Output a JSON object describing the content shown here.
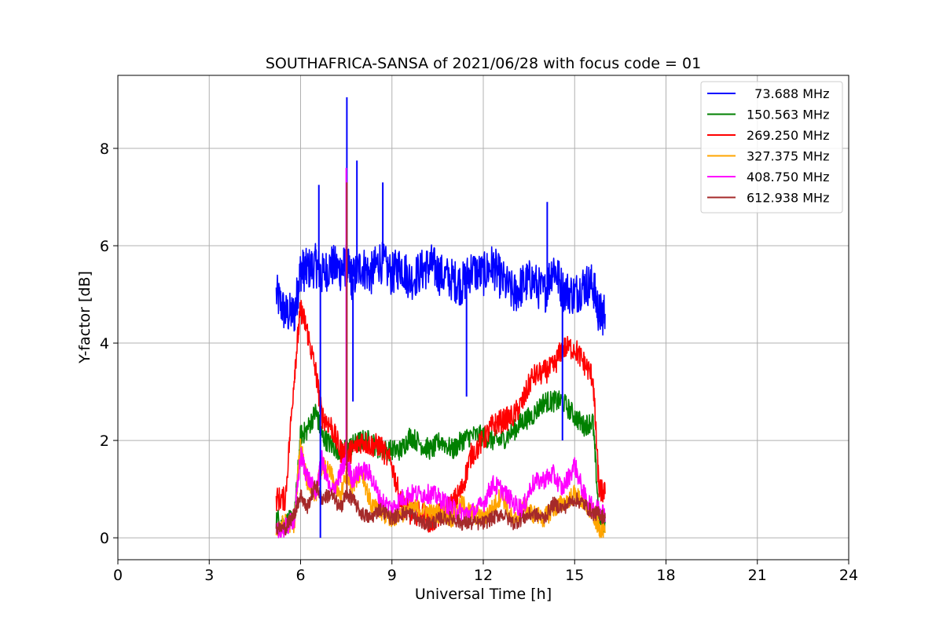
{
  "chart_data": {
    "type": "line",
    "title": "SOUTHAFRICA-SANSA of 2021/06/28 with focus code = 01",
    "xlabel": "Universal Time [h]",
    "ylabel": "Y-factor [dB]",
    "xlim": [
      0,
      24
    ],
    "ylim": [
      -0.45,
      9.5
    ],
    "xticks": [
      0,
      3,
      6,
      9,
      12,
      15,
      18,
      21,
      24
    ],
    "yticks": [
      0,
      2,
      4,
      6,
      8
    ],
    "grid": true,
    "legend_position": "top-right",
    "x": [
      5.2,
      5.5,
      5.8,
      6.0,
      6.2,
      6.5,
      6.7,
      7.0,
      7.3,
      7.5,
      7.7,
      8.0,
      8.3,
      8.6,
      9.0,
      9.3,
      9.6,
      10.0,
      10.3,
      10.6,
      11.0,
      11.3,
      11.6,
      12.0,
      12.3,
      12.6,
      13.0,
      13.3,
      13.6,
      14.0,
      14.3,
      14.6,
      15.0,
      15.3,
      15.6,
      15.8,
      16.0
    ],
    "series": [
      {
        "name": "  73.688 MHz",
        "color": "#0000ff",
        "values": [
          5.0,
          4.6,
          4.6,
          5.5,
          5.5,
          5.6,
          5.4,
          5.6,
          5.5,
          5.6,
          5.3,
          5.6,
          5.4,
          5.7,
          5.4,
          5.6,
          5.3,
          5.5,
          5.6,
          5.4,
          5.3,
          5.2,
          5.5,
          5.4,
          5.6,
          5.3,
          5.0,
          5.2,
          5.3,
          5.0,
          5.6,
          5.1,
          5.0,
          5.2,
          5.2,
          4.6,
          4.6
        ]
      },
      {
        "name": "150.563 MHz",
        "color": "#008000",
        "values": [
          0.4,
          0.3,
          0.4,
          2.1,
          2.2,
          2.6,
          2.1,
          1.9,
          1.8,
          1.8,
          1.9,
          2.0,
          2.0,
          1.8,
          1.8,
          1.8,
          2.1,
          1.9,
          1.8,
          2.0,
          1.8,
          2.0,
          2.1,
          2.1,
          2.0,
          2.0,
          2.2,
          2.4,
          2.5,
          2.8,
          2.8,
          2.8,
          2.5,
          2.3,
          2.4,
          0.4,
          0.3
        ]
      },
      {
        "name": "269.250 MHz",
        "color": "#ff0000",
        "values": [
          0.8,
          0.8,
          3.4,
          4.7,
          4.3,
          3.4,
          2.5,
          2.3,
          1.8,
          1.7,
          1.8,
          2.0,
          1.9,
          1.9,
          1.5,
          0.7,
          0.5,
          0.5,
          0.3,
          0.5,
          0.7,
          1.0,
          1.7,
          2.0,
          2.3,
          2.4,
          2.5,
          2.8,
          3.3,
          3.4,
          3.5,
          3.9,
          3.9,
          3.6,
          3.3,
          1.0,
          0.9
        ]
      },
      {
        "name": "327.375 MHz",
        "color": "#ffa500",
        "values": [
          0.2,
          0.3,
          0.3,
          2.0,
          1.2,
          0.9,
          1.5,
          1.3,
          0.8,
          1.3,
          1.1,
          1.4,
          0.7,
          0.5,
          0.4,
          0.5,
          0.6,
          0.6,
          0.5,
          0.5,
          0.4,
          0.7,
          0.5,
          0.4,
          0.6,
          0.9,
          0.3,
          0.7,
          0.5,
          0.4,
          0.6,
          0.7,
          0.9,
          0.7,
          0.5,
          0.2,
          0.1
        ]
      },
      {
        "name": "408.750 MHz",
        "color": "#ff00ff",
        "values": [
          0.1,
          0.2,
          0.4,
          1.7,
          1.3,
          0.9,
          1.6,
          0.9,
          1.3,
          1.6,
          1.2,
          1.4,
          1.3,
          0.8,
          0.6,
          0.8,
          0.9,
          0.9,
          0.9,
          0.8,
          0.6,
          0.5,
          0.5,
          0.7,
          1.1,
          1.0,
          0.7,
          0.6,
          1.1,
          1.2,
          1.3,
          1.0,
          1.5,
          0.9,
          0.6,
          0.6,
          0.5
        ]
      },
      {
        "name": "612.938 MHz",
        "color": "#a52a2a",
        "values": [
          0.2,
          0.2,
          0.5,
          0.9,
          0.6,
          1.1,
          0.8,
          0.9,
          0.6,
          0.9,
          0.8,
          0.5,
          0.4,
          0.6,
          0.4,
          0.5,
          0.5,
          0.3,
          0.3,
          0.4,
          0.4,
          0.3,
          0.3,
          0.3,
          0.4,
          0.5,
          0.3,
          0.4,
          0.5,
          0.4,
          0.7,
          0.6,
          0.8,
          0.7,
          0.5,
          0.5,
          0.4
        ]
      }
    ],
    "spikes": [
      {
        "series": 0,
        "x": 7.52,
        "y": 9.05
      },
      {
        "series": 0,
        "x": 7.85,
        "y": 7.75
      },
      {
        "series": 0,
        "x": 6.6,
        "y": 7.25
      },
      {
        "series": 0,
        "x": 8.7,
        "y": 7.3
      },
      {
        "series": 0,
        "x": 14.1,
        "y": 6.9
      },
      {
        "series": 0,
        "x": 6.65,
        "y": 0.0
      },
      {
        "series": 0,
        "x": 7.72,
        "y": 2.8
      },
      {
        "series": 0,
        "x": 11.45,
        "y": 2.9
      },
      {
        "series": 0,
        "x": 14.6,
        "y": 2.0
      },
      {
        "series": 4,
        "x": 7.5,
        "y": 7.6
      },
      {
        "series": 5,
        "x": 7.52,
        "y": 7.3
      }
    ]
  }
}
